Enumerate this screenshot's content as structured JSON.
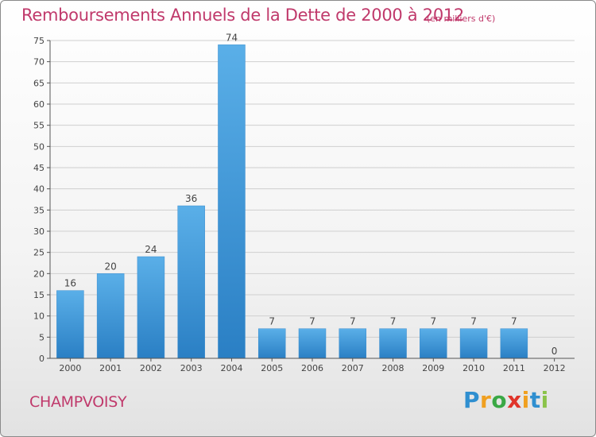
{
  "title": "Remboursements Annuels de la Dette de 2000 à 2012",
  "subtitle": "(en milliers d'€)",
  "commune": "CHAMPVOISY",
  "logo_text": "Proxiti",
  "colors": {
    "title": "#c0396b",
    "bar_light": "#5aafe8",
    "bar_dark": "#2a7fc4",
    "axis": "#555555",
    "grid": "#cfcfcf"
  },
  "chart_data": {
    "type": "bar",
    "categories": [
      "2000",
      "2001",
      "2002",
      "2003",
      "2004",
      "2005",
      "2006",
      "2007",
      "2008",
      "2009",
      "2010",
      "2011",
      "2012"
    ],
    "values": [
      16,
      20,
      24,
      36,
      74,
      7,
      7,
      7,
      7,
      7,
      7,
      7,
      0
    ],
    "value_labels": [
      "16",
      "20",
      "24",
      "36",
      "74",
      "7",
      "7",
      "7",
      "7",
      "7",
      "7",
      "7",
      "0"
    ],
    "ylim": [
      0,
      75
    ],
    "yticks": [
      0,
      5,
      10,
      15,
      20,
      25,
      30,
      35,
      40,
      45,
      50,
      55,
      60,
      65,
      70,
      75
    ],
    "grid": true
  }
}
